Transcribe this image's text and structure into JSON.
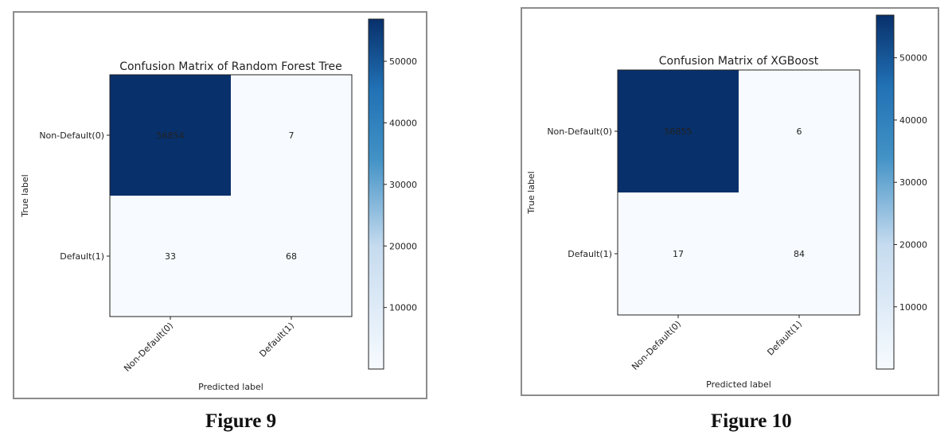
{
  "figures": [
    {
      "caption": "Figure 9"
    },
    {
      "caption": "Figure 10"
    }
  ],
  "chart_data": [
    {
      "type": "heatmap",
      "title": "Confusion Matrix of Random Forest Tree",
      "xlabel": "Predicted label",
      "ylabel": "True label",
      "x_categories": [
        "Non-Default(0)",
        "Default(1)"
      ],
      "y_categories": [
        "Non-Default(0)",
        "Default(1)"
      ],
      "values": [
        [
          56854,
          7
        ],
        [
          33,
          68
        ]
      ],
      "colormap": "Blues",
      "colorbar_ticks": [
        10000,
        20000,
        30000,
        40000,
        50000
      ],
      "colorbar_range": [
        7,
        56854
      ],
      "colors": {
        "low": "#f7fbff",
        "mid": "#4292c6",
        "high": "#08306b"
      }
    },
    {
      "type": "heatmap",
      "title": "Confusion Matrix of XGBoost",
      "xlabel": "Predicted label",
      "ylabel": "True label",
      "x_categories": [
        "Non-Default(0)",
        "Default(1)"
      ],
      "y_categories": [
        "Non-Default(0)",
        "Default(1)"
      ],
      "values": [
        [
          56855,
          6
        ],
        [
          17,
          84
        ]
      ],
      "colormap": "Blues",
      "colorbar_ticks": [
        10000,
        20000,
        30000,
        40000,
        50000
      ],
      "colorbar_range": [
        6,
        56855
      ],
      "colors": {
        "low": "#f7fbff",
        "mid": "#4292c6",
        "high": "#08306b"
      }
    }
  ]
}
